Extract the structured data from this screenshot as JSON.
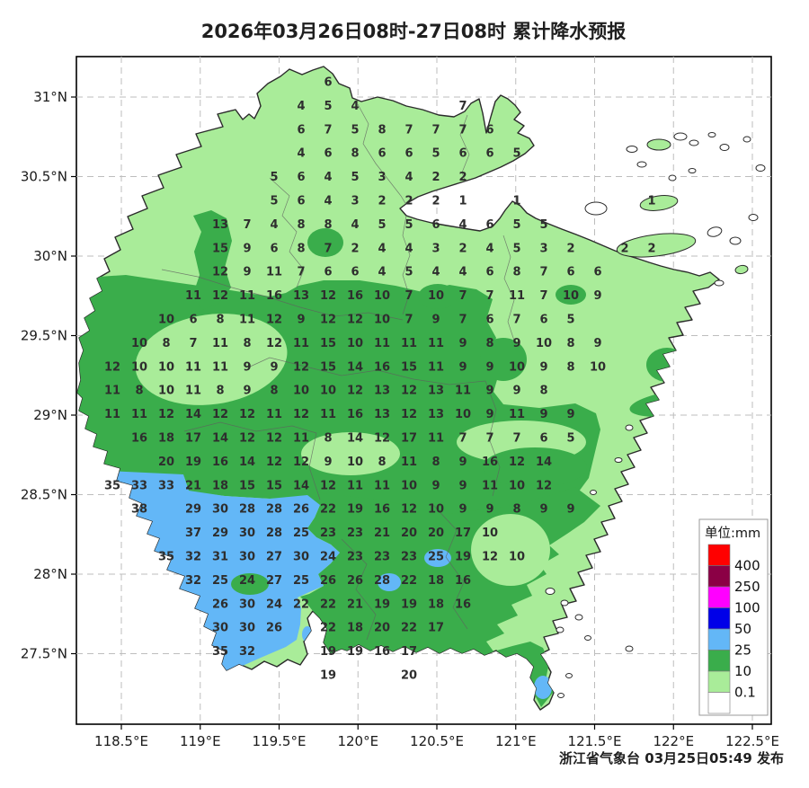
{
  "title": "2026年03月26日08时-27日08时 累计降水预报",
  "publisher": "浙江省气象台 03月25日05:49 发布",
  "legend": {
    "unit_label": "单位:mm",
    "entries": [
      {
        "color": "#FF0000",
        "label": "400"
      },
      {
        "color": "#8B0045",
        "label": "250"
      },
      {
        "color": "#FF00FF",
        "label": "100"
      },
      {
        "color": "#0000E8",
        "label": "50"
      },
      {
        "color": "#63B7F7",
        "label": "25"
      },
      {
        "color": "#3AAD4B",
        "label": "10"
      },
      {
        "color": "#A9EC99",
        "label": "0.1"
      },
      {
        "color": "#FFFFFF",
        "label": ""
      }
    ]
  },
  "axes": {
    "lon": [
      "118.5°E",
      "119°E",
      "119.5°E",
      "120°E",
      "120.5°E",
      "121°E",
      "121.5°E",
      "122°E",
      "122.5°E"
    ],
    "lat": [
      "31°N",
      "30.5°N",
      "30°N",
      "29.5°N",
      "29°N",
      "28.5°N",
      "28°N",
      "27.5°N"
    ]
  },
  "map_colors": {
    "light_green": "#A9EC99",
    "green": "#3AAD4B",
    "blue": "#63B7F7",
    "sea": "#FFFFFF"
  },
  "precip_grid": {
    "rows": [
      {
        "j": 0,
        "c": 9,
        "v": [
          6
        ]
      },
      {
        "j": 1,
        "c": 8,
        "v": [
          4,
          5,
          4
        ]
      },
      {
        "j": 2,
        "c": 8,
        "v": [
          6,
          7,
          5,
          8,
          7,
          7,
          7,
          6
        ]
      },
      {
        "j": 3,
        "c": 8,
        "v": [
          4,
          6,
          8,
          6,
          6,
          5,
          6,
          6,
          5
        ]
      },
      {
        "j": 4,
        "c": 7,
        "v": [
          5,
          6,
          4,
          5,
          3,
          4,
          2,
          2
        ]
      },
      {
        "j": 5,
        "c": 7,
        "v": [
          5,
          6,
          4,
          3,
          2,
          2,
          2,
          1
        ]
      },
      {
        "j": 6,
        "c": 5,
        "v": [
          13,
          7,
          4,
          8,
          8,
          4,
          5,
          5,
          6,
          4,
          6,
          5,
          5
        ]
      },
      {
        "j": 7,
        "c": 5,
        "v": [
          15,
          9,
          6,
          8,
          7,
          2,
          4,
          4,
          3,
          2,
          4,
          5,
          3,
          2
        ]
      },
      {
        "j": 8,
        "c": 5,
        "v": [
          12,
          9,
          11,
          7,
          6,
          6,
          4,
          5,
          4,
          4,
          6,
          8,
          7,
          6,
          6
        ]
      },
      {
        "j": 9,
        "c": 4,
        "v": [
          11,
          12,
          11,
          16,
          13,
          12,
          16,
          10,
          7,
          10,
          7,
          7,
          11,
          7,
          10,
          9
        ]
      },
      {
        "j": 10,
        "c": 3,
        "v": [
          10,
          6,
          8,
          11,
          12,
          9,
          12,
          12,
          10,
          7,
          9,
          7,
          6,
          7,
          6,
          5
        ]
      },
      {
        "j": 11,
        "c": 2,
        "v": [
          10,
          8,
          7,
          11,
          8,
          12,
          11,
          15,
          10,
          11,
          11,
          11,
          9,
          8,
          9,
          10,
          8,
          9
        ]
      },
      {
        "j": 12,
        "c": 1,
        "v": [
          12,
          10,
          10,
          11,
          11,
          9,
          9,
          12,
          15,
          14,
          16,
          15,
          11,
          9,
          9,
          10,
          9,
          8,
          10
        ]
      },
      {
        "j": 13,
        "c": 1,
        "v": [
          11,
          8,
          10,
          11,
          8,
          9,
          8,
          10,
          10,
          12,
          13,
          12,
          13,
          11,
          9,
          9,
          8
        ]
      },
      {
        "j": 14,
        "c": 1,
        "v": [
          11,
          11,
          12,
          14,
          12,
          12,
          11,
          12,
          11,
          16,
          13,
          12,
          13,
          10,
          9,
          11,
          9,
          9
        ]
      },
      {
        "j": 15,
        "c": 2,
        "v": [
          16,
          18,
          17,
          14,
          12,
          12,
          11,
          8,
          14,
          12,
          17,
          11,
          7,
          7,
          7,
          6,
          5
        ]
      },
      {
        "j": 16,
        "c": 3,
        "v": [
          20,
          19,
          16,
          14,
          12,
          12,
          9,
          10,
          8,
          11,
          8,
          9,
          16,
          12,
          14
        ]
      },
      {
        "j": 17,
        "c": 1,
        "v": [
          35,
          33,
          33,
          21,
          18,
          15,
          15,
          14,
          12,
          11,
          11,
          10,
          9,
          9,
          11,
          10,
          12
        ]
      },
      {
        "j": 18,
        "c": 4,
        "v": [
          29,
          30,
          28,
          28,
          26,
          22,
          19,
          16,
          12,
          10,
          9,
          9,
          8,
          9,
          9
        ]
      },
      {
        "j": 19,
        "c": 4,
        "v": [
          37,
          29,
          30,
          28,
          25,
          23,
          23,
          21,
          20,
          20,
          17,
          10
        ]
      },
      {
        "j": 20,
        "c": 3,
        "v": [
          35,
          32,
          31,
          30,
          27,
          30,
          24,
          23,
          23,
          23,
          25,
          19,
          12,
          10
        ]
      },
      {
        "j": 21,
        "c": 4,
        "v": [
          32,
          25,
          24,
          27,
          25,
          26,
          26,
          28,
          22,
          18,
          16
        ]
      },
      {
        "j": 22,
        "c": 5,
        "v": [
          26,
          30,
          24,
          22,
          22,
          21,
          19,
          19,
          18,
          16
        ]
      },
      {
        "j": 23,
        "c": 5,
        "v": [
          30,
          30,
          26
        ]
      },
      {
        "j": 24,
        "c": 5,
        "v": [
          35,
          32
        ]
      }
    ],
    "extras": [
      {
        "j": 1,
        "c": 14,
        "v": 7
      },
      {
        "j": 5,
        "c": 16,
        "v": 1
      },
      {
        "j": 5,
        "c": 21,
        "v": 1
      },
      {
        "j": 7,
        "c": 20,
        "v": 2
      },
      {
        "j": 7,
        "c": 21,
        "v": 2
      },
      {
        "j": 18,
        "c": 2,
        "v": 38
      },
      {
        "j": 23,
        "c": 9,
        "v": 22
      },
      {
        "j": 23,
        "c": 10,
        "v": 18
      },
      {
        "j": 23,
        "c": 11,
        "v": 20
      },
      {
        "j": 23,
        "c": 12,
        "v": 22
      },
      {
        "j": 23,
        "c": 13,
        "v": 17
      },
      {
        "j": 24,
        "c": 9,
        "v": 19
      },
      {
        "j": 24,
        "c": 10,
        "v": 19
      },
      {
        "j": 24,
        "c": 11,
        "v": 16
      },
      {
        "j": 24,
        "c": 12,
        "v": 17
      },
      {
        "j": 25,
        "c": 9,
        "v": 19
      },
      {
        "j": 25,
        "c": 12,
        "v": 20
      }
    ]
  }
}
